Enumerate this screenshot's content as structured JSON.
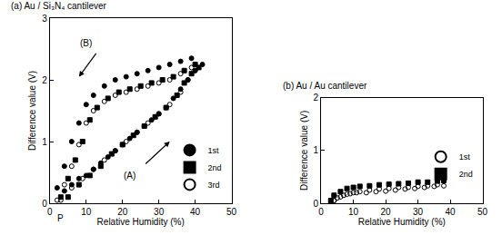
{
  "chart_data": [
    {
      "type": "scatter",
      "title": "(a) Au / Si₃N₄ cantilever",
      "x_label": "Relative Humidity (%)",
      "y_label": "Difference value (V)",
      "xlim": [
        0,
        50
      ],
      "xticks": [
        0,
        10,
        20,
        30,
        40,
        50
      ],
      "ylim": [
        0,
        3
      ],
      "yticks": [
        0,
        1,
        2,
        3
      ],
      "grid": false,
      "legend": "lower right",
      "annotations": [
        "(A)",
        "(B)",
        "P"
      ],
      "series": [
        {
          "name": "1st",
          "color": "#000000",
          "marker": "triangle-open",
          "x": [
            4,
            6,
            8,
            10,
            12,
            14,
            16,
            18,
            20,
            22,
            24,
            26,
            28,
            30,
            32,
            34,
            36,
            38,
            40,
            42,
            39,
            36,
            33,
            30,
            27,
            24,
            21,
            18,
            15,
            12,
            10,
            8,
            6,
            4,
            2
          ],
          "values": [
            0.2,
            0.3,
            0.4,
            0.45,
            0.55,
            0.65,
            0.75,
            0.85,
            0.95,
            1.05,
            1.15,
            1.25,
            1.35,
            1.45,
            1.55,
            1.7,
            1.85,
            2.0,
            2.15,
            2.25,
            2.35,
            2.3,
            2.25,
            2.2,
            2.15,
            2.1,
            2.05,
            2.0,
            1.9,
            1.75,
            1.6,
            1.3,
            1.0,
            0.6,
            0.25
          ]
        },
        {
          "name": "2nd",
          "color": "#000000",
          "marker": "square",
          "x": [
            5,
            8,
            11,
            14,
            17,
            20,
            23,
            26,
            29,
            32,
            35,
            37,
            39,
            41,
            40,
            37,
            34,
            31,
            28,
            25,
            22,
            19,
            16,
            13,
            11,
            9,
            7,
            5,
            3
          ],
          "values": [
            0.1,
            0.3,
            0.45,
            0.6,
            0.8,
            0.95,
            1.1,
            1.25,
            1.4,
            1.55,
            1.75,
            1.95,
            2.1,
            2.2,
            2.25,
            2.15,
            2.05,
            2.0,
            1.95,
            1.9,
            1.85,
            1.8,
            1.7,
            1.55,
            1.35,
            1.0,
            0.7,
            0.4,
            0.1
          ]
        },
        {
          "name": "3rd",
          "color": "#000000",
          "marker": "circle-open",
          "x": [
            3,
            6,
            9,
            12,
            15,
            18,
            21,
            24,
            27,
            30,
            33,
            36,
            38,
            40,
            39,
            36,
            33,
            30,
            27,
            24,
            21,
            18,
            15,
            12,
            10,
            8,
            6,
            4,
            2
          ],
          "values": [
            0.05,
            0.25,
            0.4,
            0.55,
            0.7,
            0.85,
            1.0,
            1.15,
            1.3,
            1.45,
            1.6,
            1.8,
            2.0,
            2.15,
            2.2,
            2.1,
            2.0,
            1.95,
            1.9,
            1.85,
            1.8,
            1.75,
            1.65,
            1.5,
            1.3,
            0.95,
            0.6,
            0.3,
            0.05
          ]
        }
      ]
    },
    {
      "type": "scatter",
      "title": "(b) Au / Au cantilever",
      "x_label": "Relative Humidity (%)",
      "y_label": "Difference value (V)",
      "xlim": [
        0,
        50
      ],
      "xticks": [
        0,
        10,
        20,
        30,
        40,
        50
      ],
      "ylim": [
        0,
        2
      ],
      "yticks": [
        0,
        1,
        2
      ],
      "grid": false,
      "legend": "center right",
      "series": [
        {
          "name": "1st",
          "color": "#000000",
          "marker": "circle-open",
          "x": [
            3,
            4,
            5,
            7,
            9,
            11,
            14,
            17,
            20,
            23,
            26,
            29,
            32,
            35,
            38,
            36,
            33,
            30,
            27,
            24,
            21,
            18,
            15,
            12,
            10,
            8,
            6,
            4
          ],
          "values": [
            0.0,
            0.05,
            0.1,
            0.15,
            0.18,
            0.2,
            0.2,
            0.22,
            0.23,
            0.25,
            0.27,
            0.28,
            0.3,
            0.32,
            0.33,
            0.35,
            0.33,
            0.32,
            0.3,
            0.3,
            0.28,
            0.27,
            0.25,
            0.22,
            0.2,
            0.17,
            0.12,
            0.05
          ]
        },
        {
          "name": "2nd",
          "color": "#000000",
          "marker": "square",
          "x": [
            3,
            4,
            6,
            8,
            10,
            12,
            15,
            18,
            21,
            24,
            27,
            30,
            33,
            36,
            38
          ],
          "values": [
            0.05,
            0.15,
            0.22,
            0.28,
            0.3,
            0.32,
            0.33,
            0.35,
            0.36,
            0.37,
            0.38,
            0.4,
            0.4,
            0.42,
            0.43
          ]
        }
      ]
    }
  ]
}
